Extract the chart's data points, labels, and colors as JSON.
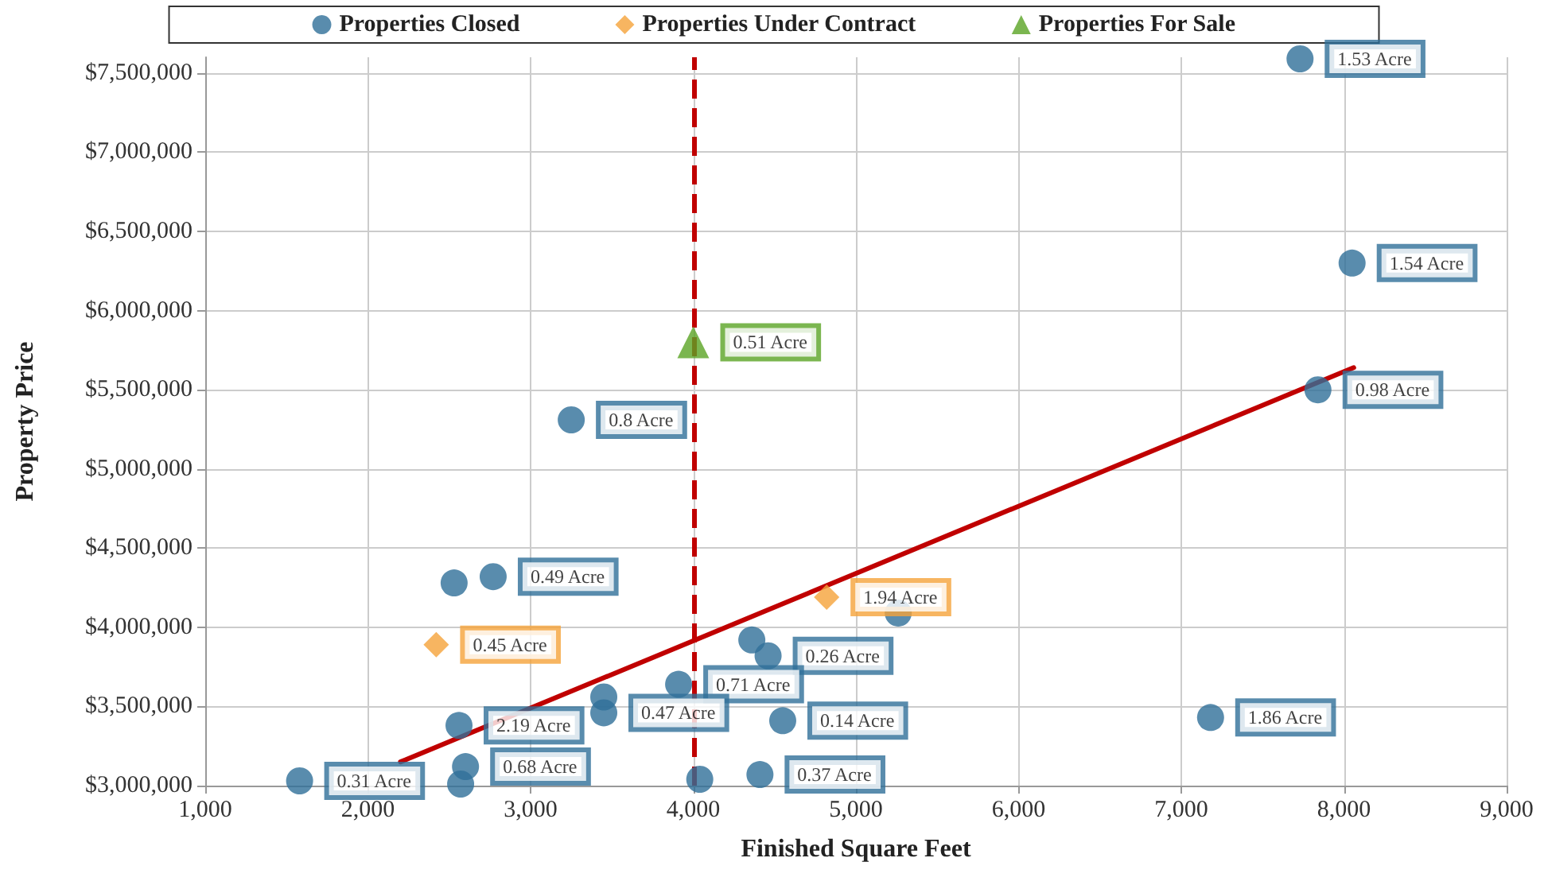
{
  "chart_data": {
    "type": "scatter",
    "xlabel": "Finished Square Feet",
    "ylabel": "Property Price",
    "xlim": [
      1000,
      9000
    ],
    "xticks": [
      {
        "value": 1000,
        "label": "1,000"
      },
      {
        "value": 2000,
        "label": "2,000"
      },
      {
        "value": 3000,
        "label": "3,000"
      },
      {
        "value": 4000,
        "label": "4,000"
      },
      {
        "value": 5000,
        "label": "5,000"
      },
      {
        "value": 6000,
        "label": "6,000"
      },
      {
        "value": 7000,
        "label": "7,000"
      },
      {
        "value": 8000,
        "label": "8,000"
      },
      {
        "value": 9000,
        "label": "9,000"
      }
    ],
    "ylim": [
      3000000,
      7600000
    ],
    "yticks": [
      {
        "value": 3000000,
        "label": "$3,000,000"
      },
      {
        "value": 3500000,
        "label": "$3,500,000"
      },
      {
        "value": 4000000,
        "label": "$4,000,000"
      },
      {
        "value": 4500000,
        "label": "$4,500,000"
      },
      {
        "value": 5000000,
        "label": "$5,000,000"
      },
      {
        "value": 5500000,
        "label": "$5,500,000"
      },
      {
        "value": 6000000,
        "label": "$6,000,000"
      },
      {
        "value": 6500000,
        "label": "$6,500,000"
      },
      {
        "value": 7000000,
        "label": "$7,000,000"
      },
      {
        "value": 7500000,
        "label": "$7,500,000"
      }
    ],
    "grid": true,
    "legend": "top",
    "series": [
      {
        "name": "Properties Closed",
        "color": "#2f6f98",
        "marker": "circle",
        "x": [
          7730,
          8050,
          3250,
          7840,
          2530,
          2770,
          5260,
          4360,
          4460,
          3910,
          3450,
          3450,
          4550,
          2560,
          2600,
          2570,
          1580,
          4040,
          4410,
          7180
        ],
        "values": [
          7590000,
          6300000,
          5310000,
          5500000,
          4280000,
          4320000,
          4090000,
          3920000,
          3820000,
          3640000,
          3560000,
          3460000,
          3410000,
          3380000,
          3120000,
          3010000,
          3030000,
          3040000,
          3070000,
          3430000
        ]
      },
      {
        "name": "Properties Under Contract",
        "color": "#f5a23a",
        "marker": "diamond",
        "x": [
          2420,
          4820
        ],
        "values": [
          3890000,
          4190000
        ]
      },
      {
        "name": "Properties For Sale",
        "color": "#5aa424",
        "marker": "triangle",
        "x": [
          4000
        ],
        "values": [
          5800000
        ]
      },
      {
        "type": "line",
        "color": "#c00000",
        "marker": "none",
        "line_style": "solid",
        "x": [
          2200,
          8060
        ],
        "values": [
          3150000,
          5640000
        ]
      }
    ],
    "annotations": [
      {
        "text": "1.53 Acre",
        "x": 7730,
        "y": 7590000
      },
      {
        "text": "1.54 Acre",
        "x": 8050,
        "y": 6300000
      },
      {
        "text": "0.8 Acre",
        "x": 3250,
        "y": 5310000
      },
      {
        "text": "0.98 Acre",
        "x": 7840,
        "y": 5500000
      },
      {
        "text": "0.49 Acre",
        "x": 2770,
        "y": 4320000
      },
      {
        "text": "0.26 Acre",
        "x": 4460,
        "y": 3820000
      },
      {
        "text": "0.71 Acre",
        "x": 3910,
        "y": 3640000
      },
      {
        "text": "0.47 Acre",
        "x": 3450,
        "y": 3460000
      },
      {
        "text": "0.14 Acre",
        "x": 4550,
        "y": 3410000
      },
      {
        "text": "2.19 Acre",
        "x": 2560,
        "y": 3380000
      },
      {
        "text": "0.68 Acre",
        "x": 2600,
        "y": 3120000
      },
      {
        "text": "0.31 Acre",
        "x": 1580,
        "y": 3030000
      },
      {
        "text": "0.37 Acre",
        "x": 4410,
        "y": 3070000
      },
      {
        "text": "1.86 Acre",
        "x": 7180,
        "y": 3430000
      },
      {
        "text": "0.45 Acre",
        "x": 2420,
        "y": 3890000
      },
      {
        "text": "1.94 Acre",
        "x": 4820,
        "y": 4190000
      },
      {
        "text": "0.51 Acre",
        "x": 4000,
        "y": 5800000
      }
    ],
    "ref_lines": [
      {
        "axis": "x",
        "value": 4000,
        "color": "#c00000",
        "line_style": "dashed"
      }
    ]
  }
}
